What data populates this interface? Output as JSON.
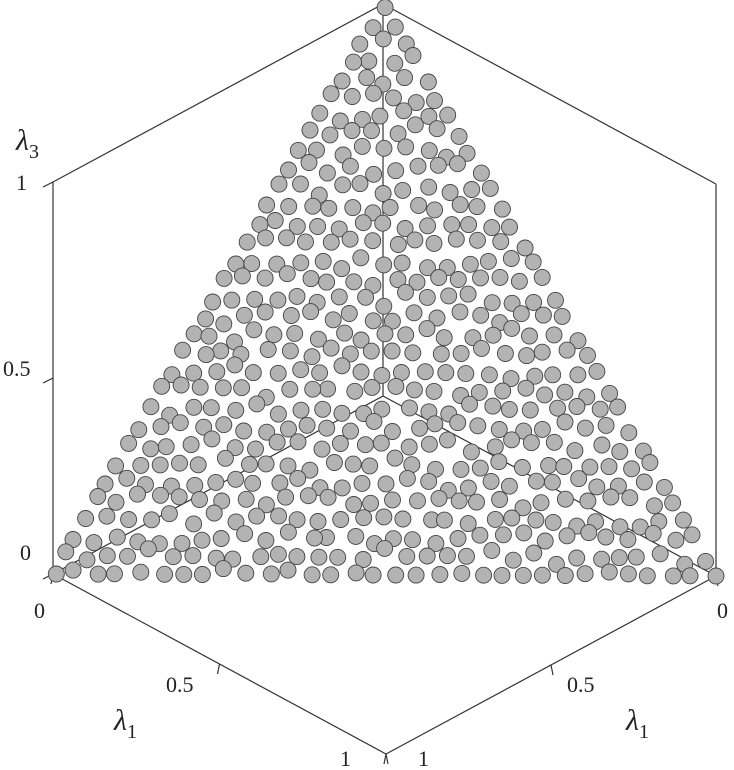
{
  "chart_data": {
    "type": "scatter",
    "title": "",
    "description": "3D scatter of simplex points lambda1 + lambda2 + lambda3 = 1, viewed along the (1,1,1) diagonal",
    "axes": {
      "left_floor": {
        "label_symbol": "λ",
        "label_subscript": "1",
        "ticks": [
          "0",
          "0.5",
          "1"
        ],
        "range": [
          0,
          1
        ]
      },
      "right_floor": {
        "label_symbol": "λ",
        "label_subscript": "1",
        "ticks": [
          "0",
          "0.5",
          "1"
        ],
        "range": [
          0,
          1
        ]
      },
      "vertical": {
        "label_symbol": "λ",
        "label_subscript": "3",
        "ticks": [
          "0",
          "0.5",
          "1"
        ],
        "range": [
          0,
          1
        ]
      }
    },
    "grid": false,
    "point_style": {
      "fill": "#b3b3b3",
      "edge": "#444444"
    },
    "points_generation": {
      "grid_steps": 31,
      "jitter": 0.0075,
      "seed": 7,
      "note": "points sampled on jittered triangular lattice over the simplex"
    }
  }
}
